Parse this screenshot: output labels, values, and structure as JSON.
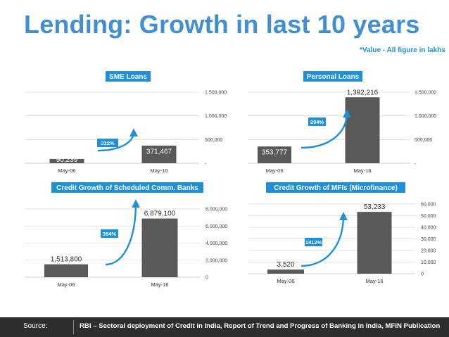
{
  "slide": {
    "title": "Lending: Growth in last 10 years",
    "note": "*Value - All figure in lakhs"
  },
  "footer": {
    "source_label": "Source:",
    "source_text": "RBI – Sectoral deployment of Credit in India, Report of Trend  and Progress of Banking in India, MFIN Publication"
  },
  "colors": {
    "title": "#3f8fd2",
    "accent": "#1f8fd8",
    "bar": "#595959",
    "footer_bg": "#2e2e2e"
  },
  "chart_data": [
    {
      "type": "bar",
      "title": "SME Loans",
      "categories": [
        "May-06",
        "May-16"
      ],
      "values": [
        90239,
        371467
      ],
      "value_labels": [
        "90,239",
        "371,467"
      ],
      "ylim": [
        0,
        1500000
      ],
      "yticks": [
        0,
        500000,
        1000000,
        1500000
      ],
      "ytick_labels": [
        "-",
        "500,000",
        "1,000,000",
        "1,500,000"
      ],
      "growth_label": "312%",
      "gridlines": true
    },
    {
      "type": "bar",
      "title": "Personal Loans",
      "categories": [
        "May-06",
        "May-16"
      ],
      "values": [
        353777,
        1392216
      ],
      "value_labels": [
        "353,777",
        "1,392,216"
      ],
      "ylim": [
        0,
        1500000
      ],
      "yticks": [
        0,
        500000,
        1000000,
        1500000
      ],
      "ytick_labels": [
        "-",
        "500,000",
        "1,000,000",
        "1,500,000"
      ],
      "growth_label": "294%",
      "gridlines": true
    },
    {
      "type": "bar",
      "title": "Credit Growth of Scheduled Comm. Banks",
      "categories": [
        "May-06",
        "May-16"
      ],
      "values": [
        1513800,
        6879100
      ],
      "value_labels": [
        "1,513,800",
        "6,879,100"
      ],
      "ylim": [
        0,
        8000000
      ],
      "yticks": [
        0,
        2000000,
        4000000,
        6000000,
        8000000
      ],
      "ytick_labels": [
        "0",
        "2,000,000",
        "4,000,000",
        "6,000,000",
        "8,000,000"
      ],
      "growth_label": "354%",
      "gridlines": true
    },
    {
      "type": "bar",
      "title": "Credit Growth of MFIs (Microfinance)",
      "categories": [
        "May-06",
        "May-16"
      ],
      "values": [
        3520,
        53233
      ],
      "value_labels": [
        "3,520",
        "53,233"
      ],
      "ylim": [
        0,
        60000
      ],
      "yticks": [
        0,
        10000,
        20000,
        30000,
        40000,
        50000,
        60000
      ],
      "ytick_labels": [
        "0",
        "10,000",
        "20,000",
        "30,000",
        "40,000",
        "50,000",
        "60,000"
      ],
      "growth_label": "1412%",
      "gridlines": true
    }
  ]
}
